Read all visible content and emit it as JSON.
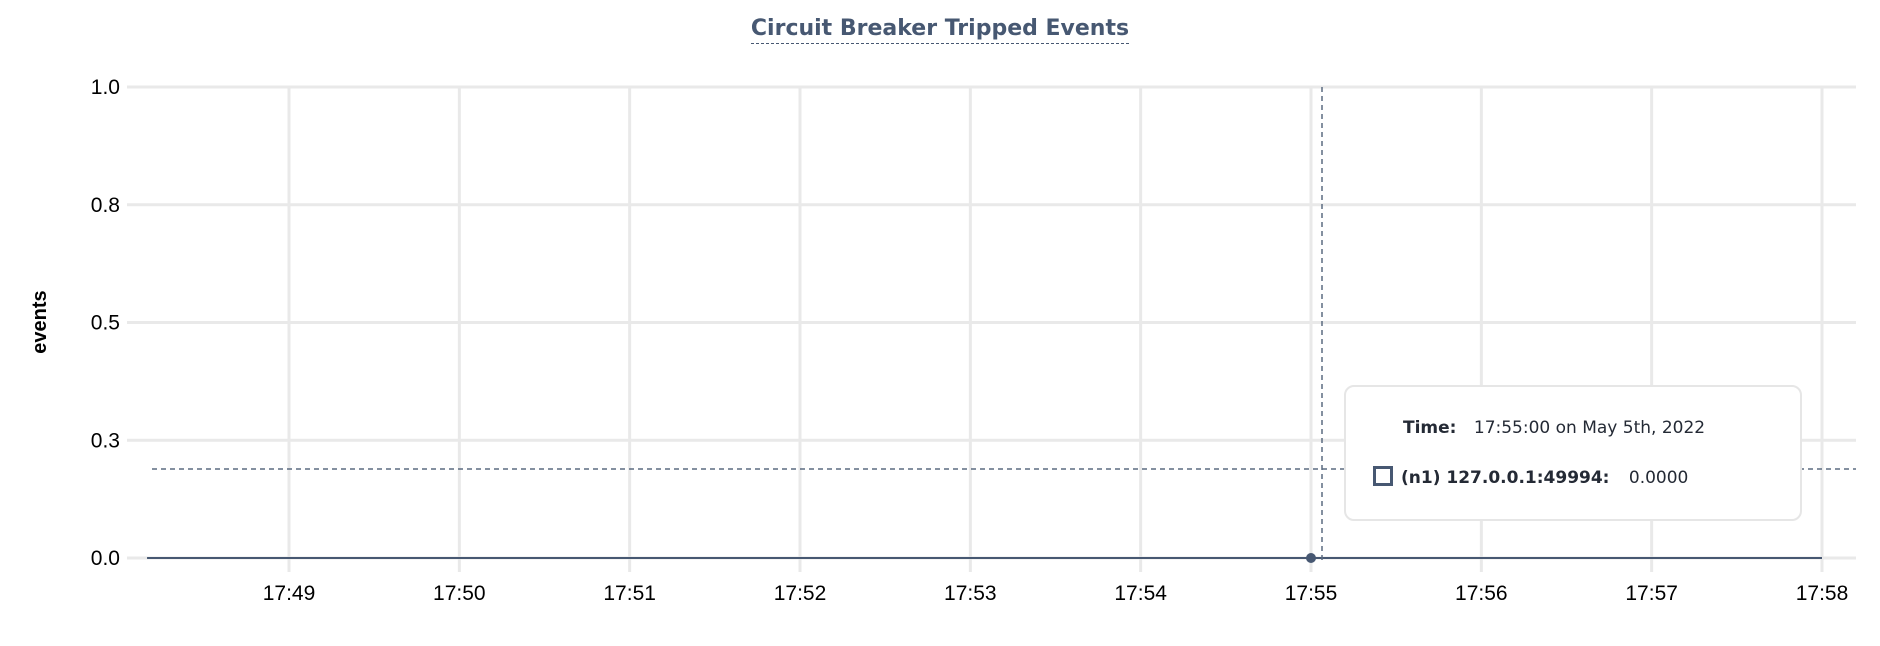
{
  "chart_data": {
    "type": "line",
    "title": "Circuit Breaker Tripped Events",
    "ylabel": "events",
    "xlabel": "",
    "ylim": [
      0,
      1
    ],
    "y_ticks": [
      {
        "value": 1.0,
        "label": "1.0"
      },
      {
        "value": 0.75,
        "label": "0.8"
      },
      {
        "value": 0.5,
        "label": "0.5"
      },
      {
        "value": 0.25,
        "label": "0.3"
      },
      {
        "value": 0.0,
        "label": "0.0"
      }
    ],
    "x_ticks": [
      "17:49",
      "17:50",
      "17:51",
      "17:52",
      "17:53",
      "17:54",
      "17:55",
      "17:56",
      "17:57",
      "17:58"
    ],
    "grid": true,
    "series": [
      {
        "name": "(n1) 127.0.0.1:49994",
        "color": "#475872",
        "x": [
          "17:48:10",
          "17:58:00"
        ],
        "y": [
          0,
          0
        ]
      }
    ],
    "hover": {
      "x": "17:55:00",
      "y": 0.0
    }
  },
  "tooltip": {
    "time_label": "Time:",
    "time_value": "17:55:00 on May 5th, 2022",
    "series_label": "(n1) 127.0.0.1:49994:",
    "series_value": "0.0000"
  }
}
